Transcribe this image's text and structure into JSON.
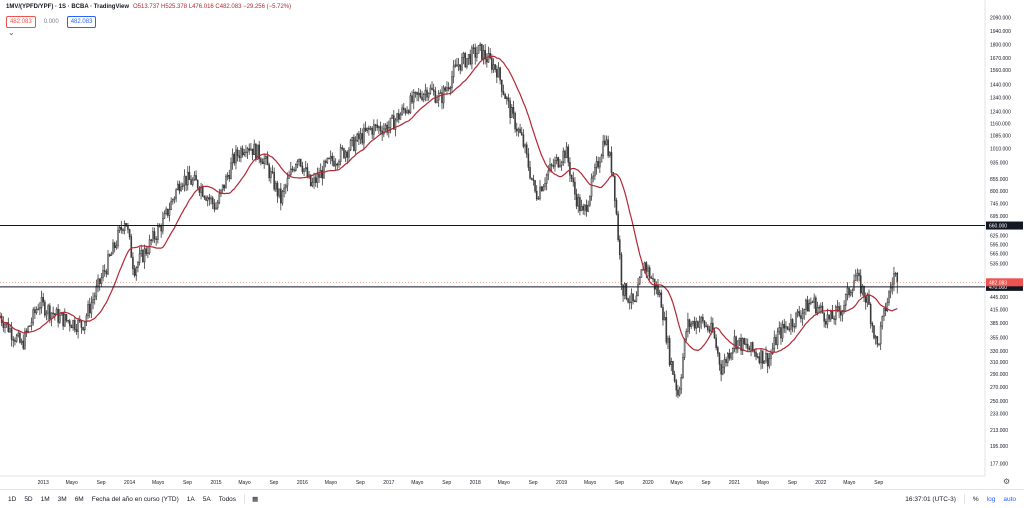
{
  "header": {
    "symbol": "1MV/(YPFD/YPF) · 1S · BCBA · TradingView",
    "ohlc": "O513.737 H525.378 L476.016 C482.083 −29.256 (−5.72%)",
    "sell_price": "482.083",
    "spread": "0.000",
    "buy_price": "482.083",
    "collapse_icon": "chevron-down-icon"
  },
  "bottom_bar": {
    "ranges": [
      "1D",
      "5D",
      "1M",
      "3M",
      "6M",
      "Fecha del año en curso (YTD)",
      "1A",
      "5A",
      "Todos"
    ],
    "calendar_icon": "calendar-icon",
    "clock": "16:37:01 (UTC-3)",
    "percent": "%",
    "log": "log",
    "auto": "auto",
    "settings_icon": "gear-icon"
  },
  "colors": {
    "up": "#26a69a",
    "down": "#ef5350",
    "candle": "#3a3a3a",
    "ma": "#b22833",
    "price_label_bg": "#ef5350",
    "level_label_bg": "#131722"
  },
  "chart_data": {
    "type": "candlestick",
    "scale": "log",
    "ylim": [
      165,
      2300
    ],
    "price_axis_ticks": [
      177.0,
      195.0,
      213.0,
      233.0,
      250.0,
      270.0,
      290.0,
      310.0,
      330.0,
      355.0,
      385.0,
      415.0,
      445.0,
      535.0,
      565.0,
      595.0,
      625.0,
      695.0,
      745.0,
      800.0,
      855.0,
      935.0,
      1010.0,
      1085.0,
      1160.0,
      1240.0,
      1340.0,
      1440.0,
      1560.0,
      1670.0,
      1800.0,
      1940.0,
      2090.0
    ],
    "price_axis_tick_labels": [
      "177.000",
      "195.000",
      "213.000",
      "233.000",
      "250.000",
      "270.000",
      "290.000",
      "310.000",
      "330.000",
      "355.000",
      "385.000",
      "415.000",
      "445.000",
      "535.000",
      "565.000",
      "595.000",
      "625.000",
      "695.000",
      "745.000",
      "800.000",
      "855.000",
      "935.000",
      "1010.000",
      "1085.000",
      "1160.000",
      "1240.000",
      "1340.000",
      "1440.000",
      "1560.000",
      "1670.000",
      "1800.000",
      "1940.000",
      "2090.000"
    ],
    "xlim": [
      2012.5,
      2023.9
    ],
    "time_axis_labels": [
      {
        "t": 2013.0,
        "label": "2013"
      },
      {
        "t": 2013.33,
        "label": "Mayo"
      },
      {
        "t": 2013.67,
        "label": "Sep"
      },
      {
        "t": 2014.0,
        "label": "2014"
      },
      {
        "t": 2014.33,
        "label": "Mayo"
      },
      {
        "t": 2014.67,
        "label": "Sep"
      },
      {
        "t": 2015.0,
        "label": "2015"
      },
      {
        "t": 2015.33,
        "label": "Mayo"
      },
      {
        "t": 2015.67,
        "label": "Sep"
      },
      {
        "t": 2016.0,
        "label": "2016"
      },
      {
        "t": 2016.33,
        "label": "Mayo"
      },
      {
        "t": 2016.67,
        "label": "Sep"
      },
      {
        "t": 2017.0,
        "label": "2017"
      },
      {
        "t": 2017.33,
        "label": "Mayo"
      },
      {
        "t": 2017.67,
        "label": "Sep"
      },
      {
        "t": 2018.0,
        "label": "2018"
      },
      {
        "t": 2018.33,
        "label": "Mayo"
      },
      {
        "t": 2018.67,
        "label": "Sep"
      },
      {
        "t": 2019.0,
        "label": "2019"
      },
      {
        "t": 2019.33,
        "label": "Mayo"
      },
      {
        "t": 2019.67,
        "label": "Sep"
      },
      {
        "t": 2020.0,
        "label": "2020"
      },
      {
        "t": 2020.33,
        "label": "Mayo"
      },
      {
        "t": 2020.67,
        "label": "Sep"
      },
      {
        "t": 2021.0,
        "label": "2021"
      },
      {
        "t": 2021.33,
        "label": "Mayo"
      },
      {
        "t": 2021.67,
        "label": "Sep"
      },
      {
        "t": 2022.0,
        "label": "2022"
      },
      {
        "t": 2022.33,
        "label": "Mayo"
      },
      {
        "t": 2022.67,
        "label": "Sep"
      }
    ],
    "price_path_anchors": [
      [
        2012.5,
        400
      ],
      [
        2012.75,
        340
      ],
      [
        2012.95,
        430
      ],
      [
        2013.2,
        395
      ],
      [
        2013.45,
        380
      ],
      [
        2013.8,
        570
      ],
      [
        2013.95,
        690
      ],
      [
        2014.05,
        520
      ],
      [
        2014.2,
        580
      ],
      [
        2014.4,
        680
      ],
      [
        2014.6,
        860
      ],
      [
        2014.8,
        830
      ],
      [
        2015.0,
        730
      ],
      [
        2015.2,
        950
      ],
      [
        2015.35,
        1040
      ],
      [
        2015.55,
        960
      ],
      [
        2015.75,
        760
      ],
      [
        2015.95,
        980
      ],
      [
        2016.1,
        820
      ],
      [
        2016.3,
        930
      ],
      [
        2016.55,
        1020
      ],
      [
        2016.8,
        1130
      ],
      [
        2017.0,
        1140
      ],
      [
        2017.25,
        1300
      ],
      [
        2017.45,
        1410
      ],
      [
        2017.6,
        1330
      ],
      [
        2017.8,
        1610
      ],
      [
        2018.05,
        1740
      ],
      [
        2018.25,
        1570
      ],
      [
        2018.4,
        1250
      ],
      [
        2018.55,
        1050
      ],
      [
        2018.7,
        780
      ],
      [
        2018.85,
        890
      ],
      [
        2019.05,
        1000
      ],
      [
        2019.15,
        790
      ],
      [
        2019.25,
        700
      ],
      [
        2019.4,
        900
      ],
      [
        2019.5,
        1080
      ],
      [
        2019.6,
        870
      ],
      [
        2019.7,
        470
      ],
      [
        2019.85,
        420
      ],
      [
        2019.95,
        540
      ],
      [
        2020.15,
        440
      ],
      [
        2020.25,
        320
      ],
      [
        2020.35,
        258
      ],
      [
        2020.45,
        380
      ],
      [
        2020.6,
        390
      ],
      [
        2020.75,
        365
      ],
      [
        2020.85,
        298
      ],
      [
        2021.0,
        350
      ],
      [
        2021.2,
        330
      ],
      [
        2021.4,
        315
      ],
      [
        2021.5,
        360
      ],
      [
        2021.7,
        395
      ],
      [
        2021.9,
        435
      ],
      [
        2022.1,
        390
      ],
      [
        2022.25,
        420
      ],
      [
        2022.4,
        500
      ],
      [
        2022.55,
        430
      ],
      [
        2022.65,
        335
      ],
      [
        2022.75,
        420
      ],
      [
        2022.85,
        505
      ],
      [
        2022.9,
        482
      ]
    ],
    "last_close": 482.083,
    "horizontal_levels": [
      {
        "price": 660.0,
        "label": "660.000"
      },
      {
        "price": 470.0,
        "label": "470.000"
      }
    ],
    "last_price_label": "482.083"
  }
}
